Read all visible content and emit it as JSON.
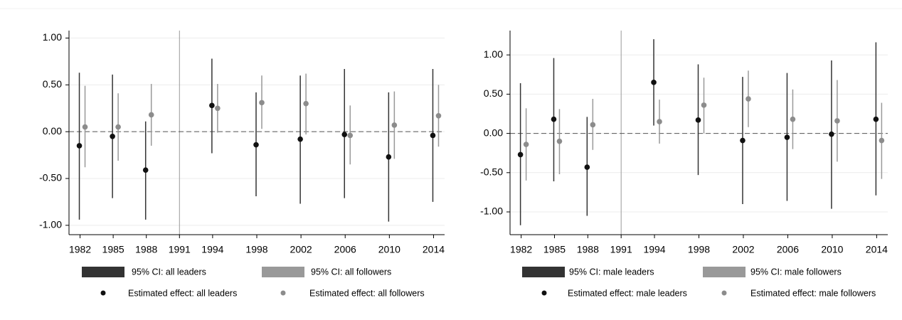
{
  "chart_data": [
    {
      "type": "errorbar",
      "xlim": [
        1981,
        2015
      ],
      "ylim": [
        -1.1,
        1.08
      ],
      "xticks": [
        1982,
        1985,
        1988,
        1991,
        1994,
        1998,
        2002,
        2006,
        2010,
        2014
      ],
      "yticks": [
        {
          "value": -1,
          "label": "-1.00"
        },
        {
          "value": -0.5,
          "label": "-0.50"
        },
        {
          "value": 0,
          "label": "0.00"
        },
        {
          "value": 0.5,
          "label": "0.50"
        },
        {
          "value": 1,
          "label": "1.00"
        }
      ],
      "grid": true,
      "vline": 1991,
      "hline": 0,
      "x": [
        1982,
        1985,
        1988,
        1994,
        1998,
        2002,
        2006,
        2010,
        2014
      ],
      "series": [
        {
          "name": "Estimated effect: all leaders",
          "ci_name": "95% CI: all leaders",
          "color": "#111111",
          "ci_color": "#333333",
          "values": [
            -0.15,
            -0.05,
            -0.41,
            0.28,
            -0.14,
            -0.08,
            -0.03,
            -0.27,
            -0.04
          ],
          "lower": [
            -0.94,
            -0.71,
            -0.94,
            -0.23,
            -0.69,
            -0.77,
            -0.71,
            -0.96,
            -0.75
          ],
          "upper": [
            0.63,
            0.61,
            0.11,
            0.78,
            0.42,
            0.6,
            0.67,
            0.42,
            0.67
          ]
        },
        {
          "name": "Estimated effect: all followers",
          "ci_name": "95% CI: all followers",
          "color": "#8c8c8c",
          "ci_color": "#999999",
          "values": [
            0.05,
            0.05,
            0.18,
            0.25,
            0.31,
            0.3,
            -0.04,
            0.07,
            0.17
          ],
          "lower": [
            -0.38,
            -0.31,
            -0.15,
            -0.01,
            0.03,
            -0.03,
            -0.35,
            -0.29,
            -0.16
          ],
          "upper": [
            0.49,
            0.41,
            0.51,
            0.51,
            0.6,
            0.62,
            0.28,
            0.43,
            0.5
          ]
        }
      ]
    },
    {
      "type": "errorbar",
      "xlim": [
        1981,
        2015
      ],
      "ylim": [
        -1.29,
        1.31
      ],
      "xticks": [
        1982,
        1985,
        1988,
        1991,
        1994,
        1998,
        2002,
        2006,
        2010,
        2014
      ],
      "yticks": [
        {
          "value": -1,
          "label": "-1.00"
        },
        {
          "value": -0.5,
          "label": "-0.50"
        },
        {
          "value": 0,
          "label": "0.00"
        },
        {
          "value": 0.5,
          "label": "0.50"
        },
        {
          "value": 1,
          "label": "1.00"
        }
      ],
      "grid": true,
      "vline": 1991,
      "hline": 0,
      "x": [
        1982,
        1985,
        1988,
        1994,
        1998,
        2002,
        2006,
        2010,
        2014
      ],
      "series": [
        {
          "name": "Estimated effect: male leaders",
          "ci_name": "95% CI: male leaders",
          "color": "#111111",
          "ci_color": "#333333",
          "values": [
            -0.27,
            0.18,
            -0.43,
            0.65,
            0.17,
            -0.09,
            -0.05,
            -0.01,
            0.18
          ],
          "lower": [
            -1.17,
            -0.61,
            -1.05,
            0.1,
            -0.53,
            -0.9,
            -0.86,
            -0.96,
            -0.79
          ],
          "upper": [
            0.64,
            0.96,
            0.21,
            1.2,
            0.88,
            0.72,
            0.77,
            0.93,
            1.16
          ]
        },
        {
          "name": "Estimated effect: male followers",
          "ci_name": "95% CI: male followers",
          "color": "#8c8c8c",
          "ci_color": "#999999",
          "values": [
            -0.14,
            -0.1,
            0.11,
            0.15,
            0.36,
            0.44,
            0.18,
            0.16,
            -0.09
          ],
          "lower": [
            -0.6,
            -0.52,
            -0.21,
            -0.13,
            0.0,
            0.08,
            -0.2,
            -0.36,
            -0.58
          ],
          "upper": [
            0.32,
            0.31,
            0.44,
            0.43,
            0.71,
            0.8,
            0.56,
            0.68,
            0.39
          ]
        }
      ]
    }
  ]
}
